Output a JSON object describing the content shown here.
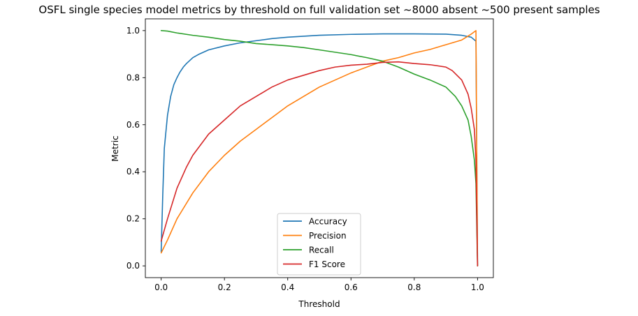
{
  "chart_data": {
    "type": "line",
    "title": "OSFL single species model metrics by threshold on full validation set ~8000 absent ~500 present samples",
    "xlabel": "Threshold",
    "ylabel": "Metric",
    "xlim": [
      -0.05,
      1.05
    ],
    "ylim": [
      -0.05,
      1.05
    ],
    "xticks": [
      "0.0",
      "0.2",
      "0.4",
      "0.6",
      "0.8",
      "1.0"
    ],
    "yticks": [
      "0.0",
      "0.2",
      "0.4",
      "0.6",
      "0.8",
      "1.0"
    ],
    "grid": false,
    "legend_position": "lower center",
    "series": [
      {
        "name": "Accuracy",
        "color": "#1f77b4",
        "x": [
          0.0,
          0.005,
          0.01,
          0.02,
          0.03,
          0.04,
          0.05,
          0.06,
          0.07,
          0.08,
          0.1,
          0.12,
          0.15,
          0.2,
          0.25,
          0.3,
          0.35,
          0.4,
          0.5,
          0.6,
          0.7,
          0.8,
          0.9,
          0.95,
          0.98,
          0.995,
          1.0
        ],
        "y": [
          0.06,
          0.3,
          0.5,
          0.64,
          0.72,
          0.77,
          0.8,
          0.825,
          0.845,
          0.86,
          0.885,
          0.9,
          0.918,
          0.935,
          0.948,
          0.957,
          0.966,
          0.972,
          0.98,
          0.984,
          0.986,
          0.986,
          0.985,
          0.98,
          0.972,
          0.955,
          0.0
        ]
      },
      {
        "name": "Precision",
        "color": "#ff7f0e",
        "x": [
          0.0,
          0.02,
          0.05,
          0.1,
          0.15,
          0.2,
          0.25,
          0.3,
          0.35,
          0.4,
          0.45,
          0.5,
          0.55,
          0.6,
          0.65,
          0.7,
          0.75,
          0.8,
          0.85,
          0.9,
          0.95,
          0.98,
          0.995,
          1.0
        ],
        "y": [
          0.055,
          0.11,
          0.2,
          0.31,
          0.4,
          0.47,
          0.53,
          0.58,
          0.63,
          0.68,
          0.72,
          0.76,
          0.79,
          0.82,
          0.845,
          0.87,
          0.885,
          0.905,
          0.92,
          0.94,
          0.96,
          0.985,
          1.0,
          0.0
        ]
      },
      {
        "name": "Recall",
        "color": "#2ca02c",
        "x": [
          0.0,
          0.02,
          0.05,
          0.1,
          0.15,
          0.2,
          0.25,
          0.3,
          0.35,
          0.4,
          0.45,
          0.5,
          0.55,
          0.6,
          0.65,
          0.7,
          0.75,
          0.8,
          0.85,
          0.9,
          0.93,
          0.95,
          0.97,
          0.98,
          0.99,
          0.995,
          1.0
        ],
        "y": [
          1.0,
          0.998,
          0.99,
          0.98,
          0.972,
          0.962,
          0.955,
          0.945,
          0.94,
          0.935,
          0.928,
          0.918,
          0.908,
          0.898,
          0.885,
          0.87,
          0.845,
          0.815,
          0.79,
          0.76,
          0.72,
          0.68,
          0.62,
          0.55,
          0.45,
          0.35,
          0.0
        ]
      },
      {
        "name": "F1 Score",
        "color": "#d62728",
        "x": [
          0.0,
          0.02,
          0.05,
          0.08,
          0.1,
          0.15,
          0.2,
          0.25,
          0.3,
          0.35,
          0.4,
          0.45,
          0.5,
          0.55,
          0.6,
          0.65,
          0.7,
          0.75,
          0.8,
          0.85,
          0.9,
          0.92,
          0.95,
          0.97,
          0.98,
          0.99,
          0.995,
          1.0
        ],
        "y": [
          0.105,
          0.2,
          0.33,
          0.42,
          0.47,
          0.56,
          0.62,
          0.68,
          0.72,
          0.76,
          0.79,
          0.81,
          0.83,
          0.845,
          0.853,
          0.857,
          0.865,
          0.867,
          0.86,
          0.855,
          0.845,
          0.83,
          0.79,
          0.73,
          0.67,
          0.58,
          0.45,
          0.0
        ]
      }
    ]
  }
}
